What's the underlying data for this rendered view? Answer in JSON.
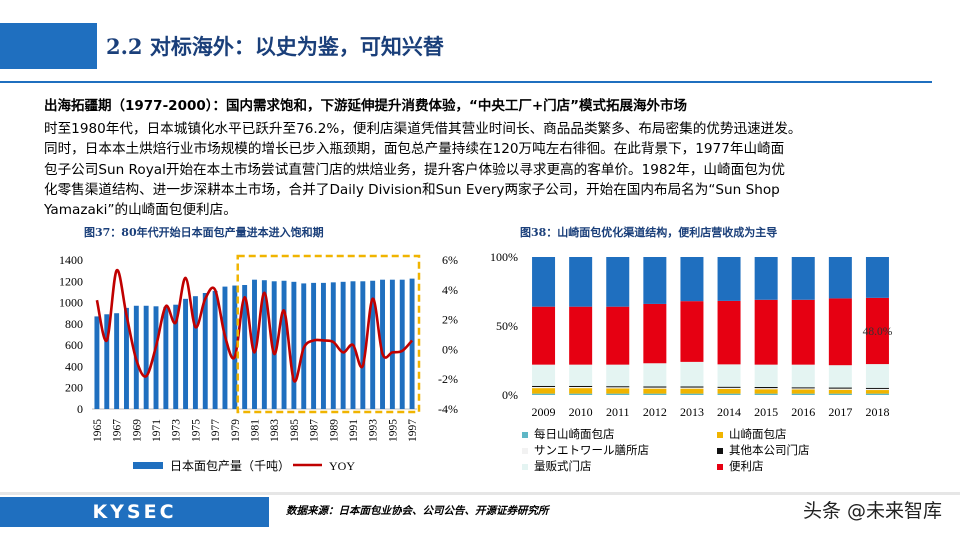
{
  "header": {
    "title": "2.2 对标海外：以史为鉴，可知兴替"
  },
  "subheading": "出海拓疆期（1977-2000）：国内需求饱和，下游延伸提升消费体验，“中央工厂+门店”模式拓展海外市场",
  "paragraph_lines": [
    "时至1980年代，日本城镇化水平已跃升至76.2%，便利店渠道凭借其营业时间长、商品品类繁多、布局密集的优势迅速迸发。",
    "同时，日本本土烘焙行业市场规模的增长已步入瓶颈期，面包总产量持续在120万吨左右徘徊。在此背景下，1977年山崎面",
    "包子公司Sun Royal开始在本土市场尝试直营门店的烘焙业务，提升客户体验以寻求更高的客单价。1982年，山崎面包为优",
    "化零售渠道结构、进一步深耕本土市场，合并了Daily Division和Sun Every两家子公司，开始在国内布局名为“Sun Shop",
    "Yamazaki”的山崎面包便利店。"
  ],
  "figure37": {
    "caption": "图37：80年代开始日本面包产量进本进入饱和期"
  },
  "figure38": {
    "caption": "图38：山崎面包优化渠道结构，便利店营收成为主导"
  },
  "footer": {
    "logo": "KYSEC",
    "source": "数据来源：日本面包业协会、公司公告、开源证券研究所",
    "watermark": "头条 @未来智库"
  },
  "colors": {
    "brand_blue": "#1f6fbf",
    "title_navy": "#1a3f7a",
    "bar_blue": "#1f6fbf",
    "yoy_red": "#c00000",
    "highlight_gold": "#f0b400"
  },
  "chart_data": [
    {
      "type": "bar",
      "title": "图37：80年代开始日本面包产量进本进入饱和期",
      "x": [
        1965,
        1966,
        1967,
        1968,
        1969,
        1970,
        1971,
        1972,
        1973,
        1974,
        1975,
        1976,
        1977,
        1978,
        1979,
        1980,
        1981,
        1982,
        1983,
        1984,
        1985,
        1986,
        1987,
        1988,
        1989,
        1990,
        1991,
        1992,
        1993,
        1994,
        1995,
        1996,
        1997
      ],
      "x_tick_labels": [
        "1965",
        "1967",
        "1969",
        "1971",
        "1973",
        "1975",
        "1977",
        "1979",
        "1981",
        "1983",
        "1985",
        "1987",
        "1989",
        "1991",
        "1993",
        "1995",
        "1997"
      ],
      "series": [
        {
          "name": "日本面包产量（千吨）",
          "type": "bar",
          "axis": "left",
          "values": [
            870,
            890,
            900,
            950,
            970,
            970,
            965,
            960,
            980,
            1035,
            1060,
            1090,
            1110,
            1150,
            1160,
            1165,
            1215,
            1210,
            1200,
            1205,
            1195,
            1180,
            1185,
            1185,
            1190,
            1195,
            1200,
            1200,
            1205,
            1215,
            1215,
            1215,
            1225
          ]
        },
        {
          "name": "YOY",
          "type": "line",
          "axis": "right",
          "values": [
            3.3,
            0.6,
            5.3,
            2.3,
            -0.7,
            -1.8,
            0.2,
            2.9,
            1.8,
            4.8,
            1.5,
            3.4,
            4.0,
            0.9,
            -0.5,
            3.5,
            -0.2,
            3.8,
            -0.3,
            2.6,
            -2.1,
            0.1,
            0.6,
            0.6,
            0.5,
            -0.2,
            0.3,
            -1.1,
            3.4,
            -0.3,
            -0.2,
            -0.1,
            0.6
          ]
        }
      ],
      "y_left": {
        "ticks": [
          "0",
          "200",
          "400",
          "600",
          "800",
          "1000",
          "1200",
          "1400"
        ],
        "ylim": [
          0,
          1400
        ]
      },
      "y_right": {
        "ticks": [
          "-4%",
          "-2%",
          "0%",
          "2%",
          "4%",
          "6%"
        ],
        "ylim": [
          -4,
          6
        ]
      },
      "annotations": [
        {
          "type": "highlight-box",
          "from": 1980,
          "to": 1997
        }
      ],
      "legend_position": "bottom"
    },
    {
      "type": "bar",
      "stacked": true,
      "percent": true,
      "title": "图38：山崎面包优化渠道结构，便利店营收成为主导",
      "categories": [
        "2009",
        "2010",
        "2011",
        "2012",
        "2013",
        "2014",
        "2015",
        "2016",
        "2017",
        "2018"
      ],
      "y_ticks": [
        "0%",
        "50%",
        "100%"
      ],
      "ylim": [
        0,
        100
      ],
      "series": [
        {
          "name": "每日山崎面包店",
          "color": "#5fb7c6",
          "values": [
            1.0,
            1.0,
            1.0,
            1.0,
            1.0,
            1.0,
            1.0,
            1.0,
            1.0,
            1.0
          ]
        },
        {
          "name": "山崎面包店",
          "color": "#f0b400",
          "values": [
            4.0,
            4.0,
            3.8,
            3.6,
            3.6,
            3.4,
            3.2,
            3.0,
            2.8,
            2.6
          ]
        },
        {
          "name": "サンエトワール膳所店",
          "color": "#f2f2f2",
          "values": [
            0.8,
            0.8,
            0.8,
            0.8,
            0.8,
            0.8,
            0.8,
            0.8,
            0.8,
            0.8
          ]
        },
        {
          "name": "其他本公司门店",
          "color": "#111111",
          "values": [
            0.8,
            0.8,
            0.8,
            0.8,
            0.8,
            0.8,
            0.8,
            0.8,
            0.8,
            0.8
          ]
        },
        {
          "name": "量贩式门店",
          "color": "#e4f4f2",
          "values": [
            15.4,
            15.4,
            15.6,
            16.8,
            17.8,
            16.2,
            16.2,
            16.4,
            16.2,
            17.2
          ]
        },
        {
          "name": "便利店",
          "color": "#e60012",
          "values": [
            42.0,
            42.0,
            42.0,
            43.0,
            44.0,
            46.0,
            47.0,
            47.0,
            48.4,
            48.0
          ]
        },
        {
          "name": "",
          "color": "#1f6fbf",
          "values": [
            36.0,
            36.0,
            36.0,
            34.0,
            32.0,
            31.8,
            31.0,
            31.0,
            30.0,
            29.6
          ]
        }
      ],
      "data_labels": [
        {
          "category": "2018",
          "series": "便利店",
          "text": "48.0%"
        }
      ],
      "legend_position": "bottom"
    }
  ]
}
